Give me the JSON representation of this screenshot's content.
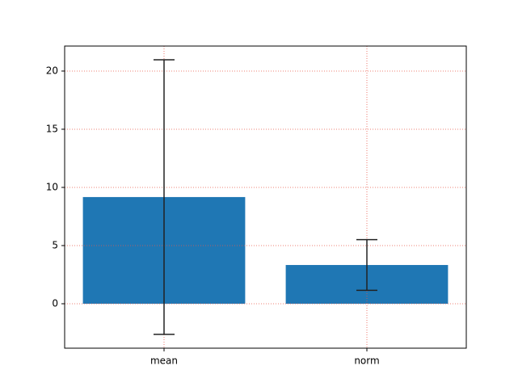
{
  "chart_data": {
    "type": "bar",
    "categories": [
      "mean",
      "norm"
    ],
    "values": [
      9.17,
      3.33
    ],
    "errors": [
      11.8,
      2.18
    ],
    "color": "#1f77b4",
    "error_color": "#222222",
    "ylim": [
      -3.82,
      22.15
    ],
    "yticks": [
      0,
      5,
      10,
      15,
      20
    ],
    "grid": true,
    "grid_color": "#e8584a"
  }
}
